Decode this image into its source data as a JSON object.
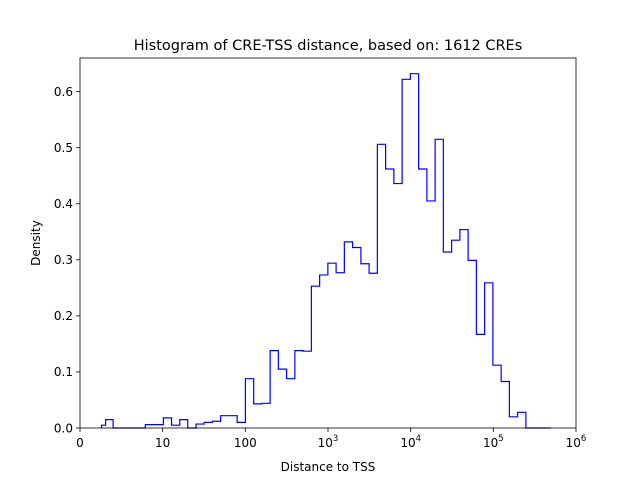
{
  "chart_data": {
    "type": "histogram-step",
    "title": "Histogram of CRE-TSS distance, based on: 1612 CREs",
    "xlabel": "Distance to TSS",
    "ylabel": "Density",
    "x_scale": "symlog",
    "xlim": [
      0,
      1000000
    ],
    "ylim": [
      0,
      0.66
    ],
    "x_ticks": [
      {
        "value": 0,
        "base": "0",
        "sup": ""
      },
      {
        "value": 10,
        "base": "10",
        "sup": ""
      },
      {
        "value": 100,
        "base": "100",
        "sup": ""
      },
      {
        "value": 1000,
        "base": "10",
        "sup": "3"
      },
      {
        "value": 10000,
        "base": "10",
        "sup": "4"
      },
      {
        "value": 100000,
        "base": "10",
        "sup": "5"
      },
      {
        "value": 1000000,
        "base": "10",
        "sup": "6"
      }
    ],
    "y_ticks": [
      {
        "value": 0.0,
        "label": "0.0"
      },
      {
        "value": 0.1,
        "label": "0.1"
      },
      {
        "value": 0.2,
        "label": "0.2"
      },
      {
        "value": 0.3,
        "label": "0.3"
      },
      {
        "value": 0.4,
        "label": "0.4"
      },
      {
        "value": 0.5,
        "label": "0.5"
      },
      {
        "value": 0.6,
        "label": "0.6"
      }
    ],
    "line_color": "#0000ff",
    "series": [
      {
        "bin_edges": [
          2.6,
          3.1,
          4.0,
          5.0,
          6.3,
          7.9,
          10.2,
          12.8,
          16.1,
          20.1,
          25.3,
          31.8,
          40.0,
          50.3,
          63.4,
          79.6,
          100.2,
          126.1,
          158.6,
          199.6,
          250.9,
          315.8,
          397.3,
          500,
          629,
          792,
          996,
          1253,
          1577,
          1985,
          2500,
          3143,
          3955,
          4976,
          6262,
          7880,
          9916,
          12480,
          15710,
          19760,
          24860,
          31280,
          39370,
          49540,
          62350,
          78460,
          98740,
          124300,
          156400,
          196800,
          247700,
          311700,
          392200,
          493500
        ],
        "density": [
          0.005,
          0.015,
          0.0,
          0.0,
          0.0,
          0.006,
          0.018,
          0.005,
          0.015,
          0.0,
          0.007,
          0.01,
          0.012,
          0.022,
          0.022,
          0.01,
          0.088,
          0.043,
          0.044,
          0.138,
          0.105,
          0.088,
          0.138,
          0.137,
          0.253,
          0.273,
          0.294,
          0.277,
          0.332,
          0.322,
          0.293,
          0.276,
          0.506,
          0.462,
          0.436,
          0.622,
          0.632,
          0.462,
          0.405,
          0.515,
          0.314,
          0.335,
          0.354,
          0.299,
          0.167,
          0.259,
          0.112,
          0.083,
          0.02,
          0.028,
          0.0,
          0.0,
          0.0
        ]
      }
    ]
  }
}
